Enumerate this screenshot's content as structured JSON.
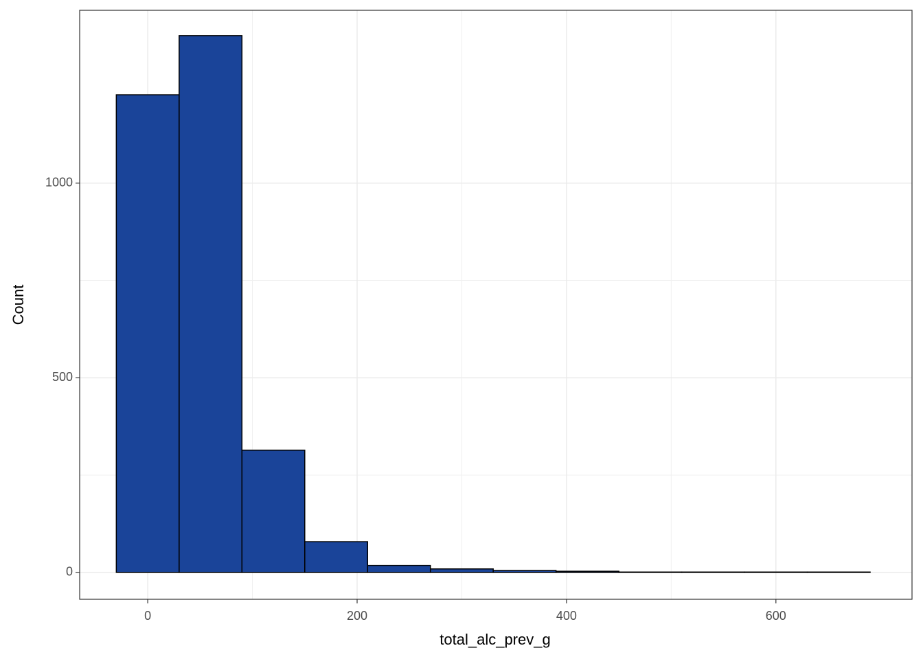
{
  "chart_data": {
    "type": "histogram",
    "x_label": "total_alc_prev_g",
    "y_label": "Count",
    "bins": [
      -30,
      30,
      90,
      150,
      210,
      270,
      330,
      390,
      450,
      510,
      570,
      630,
      690
    ],
    "values": [
      1227,
      1379,
      314,
      79,
      18,
      9,
      5,
      3,
      1,
      1,
      1,
      1
    ],
    "color": "#1a4499",
    "edge_color": "#000000",
    "xlim": [
      -65,
      730
    ],
    "ylim": [
      -69,
      1444
    ],
    "xticks": [
      0,
      200,
      400,
      600
    ],
    "yticks": [
      0,
      500,
      1000
    ],
    "grid": true
  }
}
